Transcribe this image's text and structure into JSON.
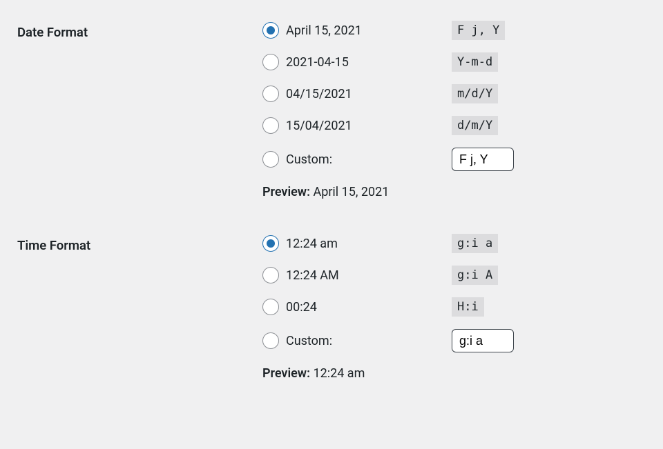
{
  "date_format": {
    "section_label": "Date Format",
    "options": [
      {
        "label": "April 15, 2021",
        "code": "F j, Y",
        "checked": true
      },
      {
        "label": "2021-04-15",
        "code": "Y-m-d",
        "checked": false
      },
      {
        "label": "04/15/2021",
        "code": "m/d/Y",
        "checked": false
      },
      {
        "label": "15/04/2021",
        "code": "d/m/Y",
        "checked": false
      }
    ],
    "custom_label": "Custom:",
    "custom_value": "F j, Y",
    "preview_label": "Preview:",
    "preview_value": "April 15, 2021"
  },
  "time_format": {
    "section_label": "Time Format",
    "options": [
      {
        "label": "12:24 am",
        "code": "g:i a",
        "checked": true
      },
      {
        "label": "12:24 AM",
        "code": "g:i A",
        "checked": false
      },
      {
        "label": "00:24",
        "code": "H:i",
        "checked": false
      }
    ],
    "custom_label": "Custom:",
    "custom_value": "g:i a",
    "preview_label": "Preview:",
    "preview_value": "12:24 am"
  },
  "colors": {
    "background": "#f0f0f1",
    "text": "#1d2327",
    "radio_border": "#8c8f94",
    "radio_checked": "#2271b1",
    "code_bg": "#dcdcde",
    "input_border": "#3c434a"
  }
}
